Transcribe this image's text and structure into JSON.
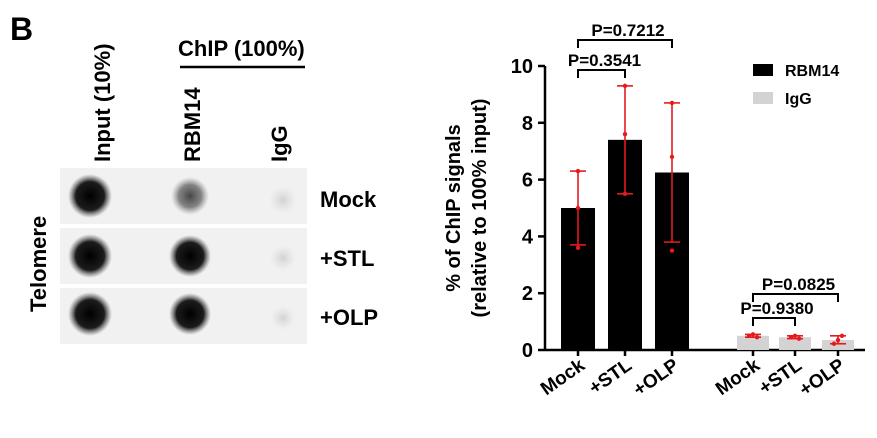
{
  "panel_label": "B",
  "blot": {
    "top_labels": [
      "Input (10%)",
      "RBM14",
      "IgG"
    ],
    "group_label": "ChIP (100%)",
    "side_label": "Telomere",
    "row_labels": [
      "Mock",
      "+STL",
      "+OLP"
    ]
  },
  "chart_data": {
    "type": "bar",
    "ylabel_line1": "% of ChIP signals",
    "ylabel_line2": "(relative to 100% input)",
    "ylim": [
      0,
      10
    ],
    "yticks": [
      0,
      2,
      4,
      6,
      8,
      10
    ],
    "ytick_labels": [
      "0",
      "2",
      "4",
      "6",
      "8",
      "10"
    ],
    "categories": [
      "Mock",
      "+STL",
      "+OLP",
      "Mock",
      "+STL",
      "+OLP"
    ],
    "legend": [
      {
        "name": "RBM14",
        "color": "#000000"
      },
      {
        "name": "IgG",
        "color": "#d3d3d3"
      }
    ],
    "legend_position": "top-right",
    "error_color": "#e41a1c",
    "series": [
      {
        "name": "RBM14",
        "color": "#000000",
        "bars": [
          {
            "category": "Mock",
            "value": 5.0,
            "err_low": 3.7,
            "err_high": 6.3,
            "points": [
              3.6,
              5.0,
              6.3
            ]
          },
          {
            "category": "+STL",
            "value": 7.4,
            "err_low": 5.5,
            "err_high": 9.3,
            "points": [
              5.5,
              7.6,
              9.3
            ]
          },
          {
            "category": "+OLP",
            "value": 6.25,
            "err_low": 3.8,
            "err_high": 8.7,
            "points": [
              3.5,
              6.8,
              8.7
            ]
          }
        ]
      },
      {
        "name": "IgG",
        "color": "#d3d3d3",
        "bars": [
          {
            "category": "Mock",
            "value": 0.5,
            "err_low": 0.45,
            "err_high": 0.55,
            "points": [
              0.5,
              0.55,
              0.45
            ]
          },
          {
            "category": "+STL",
            "value": 0.45,
            "err_low": 0.4,
            "err_high": 0.5,
            "points": [
              0.45,
              0.5,
              0.4
            ]
          },
          {
            "category": "+OLP",
            "value": 0.35,
            "err_low": 0.22,
            "err_high": 0.5,
            "points": [
              0.22,
              0.35,
              0.5
            ]
          }
        ]
      }
    ],
    "comparisons": [
      {
        "label": "P=0.7212",
        "from": 0,
        "to": 2
      },
      {
        "label": "P=0.3541",
        "from": 0,
        "to": 1
      },
      {
        "label": "P=0.0825",
        "from": 3,
        "to": 5
      },
      {
        "label": "P=0.9380",
        "from": 3,
        "to": 4
      }
    ]
  }
}
